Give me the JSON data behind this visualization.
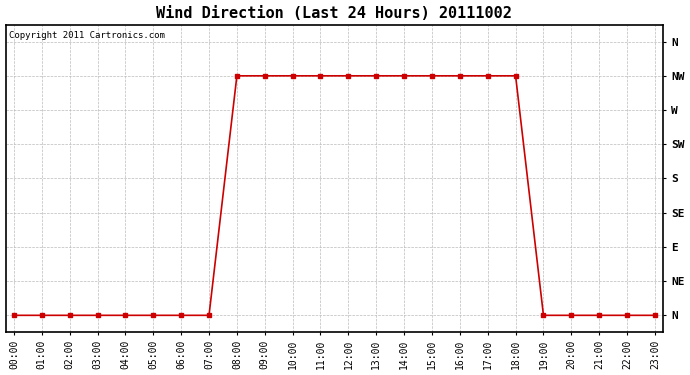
{
  "title": "Wind Direction (Last 24 Hours) 20111002",
  "copyright_text": "Copyright 2011 Cartronics.com",
  "background_color": "#ffffff",
  "line_color": "#cc0000",
  "grid_color": "#bbbbbb",
  "ytick_labels": [
    "N",
    "NE",
    "E",
    "SE",
    "S",
    "SW",
    "W",
    "NW",
    "N"
  ],
  "ytick_values": [
    0,
    1,
    2,
    3,
    4,
    5,
    6,
    7,
    8
  ],
  "xtick_labels": [
    "00:00",
    "01:00",
    "02:00",
    "03:00",
    "04:00",
    "05:00",
    "06:00",
    "07:00",
    "08:00",
    "09:00",
    "10:00",
    "11:00",
    "12:00",
    "13:00",
    "14:00",
    "15:00",
    "16:00",
    "17:00",
    "18:00",
    "19:00",
    "20:00",
    "21:00",
    "22:00",
    "23:00"
  ],
  "xtick_values": [
    0,
    1,
    2,
    3,
    4,
    5,
    6,
    7,
    8,
    9,
    10,
    11,
    12,
    13,
    14,
    15,
    16,
    17,
    18,
    19,
    20,
    21,
    22,
    23
  ],
  "x_data": [
    0,
    1,
    2,
    3,
    4,
    5,
    6,
    7,
    8,
    9,
    10,
    11,
    12,
    13,
    14,
    15,
    16,
    17,
    18,
    19,
    20,
    21,
    22,
    23
  ],
  "y_data": [
    0,
    0,
    0,
    0,
    0,
    0,
    0,
    0,
    7,
    7,
    7,
    7,
    7,
    7,
    7,
    7,
    7,
    7,
    7,
    0,
    0,
    0,
    0,
    0
  ],
  "xlim": [
    -0.3,
    23.3
  ],
  "ylim": [
    -0.5,
    8.5
  ],
  "marker": "s",
  "marker_size": 2.5,
  "line_width": 1.2,
  "title_fontsize": 11,
  "tick_fontsize": 7,
  "copyright_fontsize": 6.5,
  "figwidth": 6.9,
  "figheight": 3.75,
  "dpi": 100
}
